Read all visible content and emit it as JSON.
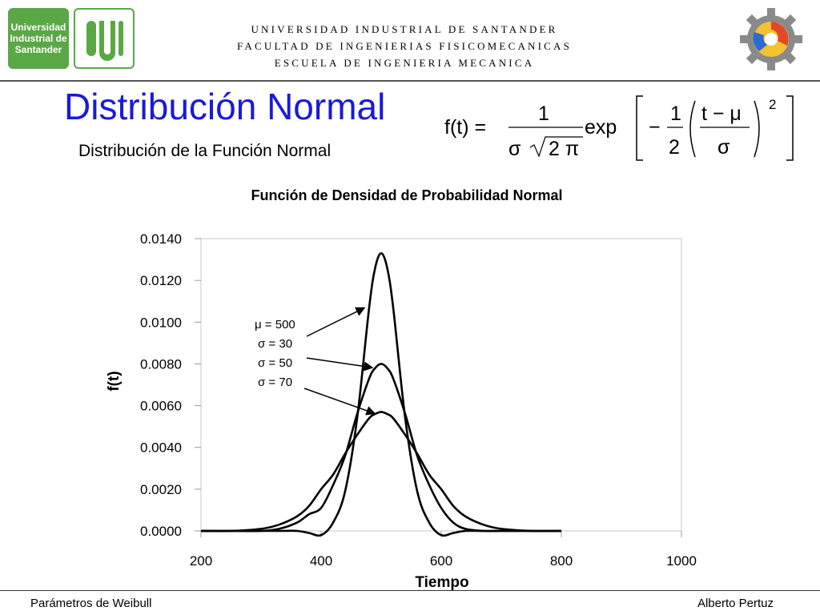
{
  "header": {
    "logo_text": "Universidad Industrial de Santander",
    "lines": [
      "UNIVERSIDAD INDUSTRIAL DE SANTANDER",
      "FACULTAD DE  INGENIERIAS FISICOMECANICAS",
      "ESCUELA DE INGENIERIA MECANICA"
    ]
  },
  "slide": {
    "title": "Distribución Normal",
    "subtitle": "Distribución de la Función Normal"
  },
  "formula": {
    "lhs": "f(t) =",
    "numerator": "1",
    "denominator_sigma": "σ",
    "denominator_root": "2 π",
    "exp": "exp",
    "minus": "−",
    "half_num": "1",
    "half_den": "2",
    "frac_num": "t − μ",
    "frac_den": "σ",
    "power": "2"
  },
  "footer": {
    "left": "Parámetros de Weibull",
    "right": "Alberto Pertuz"
  },
  "colors": {
    "title": "#1a1ad6",
    "logo_green": "#5aa845",
    "curve": "#000000"
  },
  "chart_data": {
    "type": "line",
    "title": "Función de Densidad de Probabilidad Normal",
    "xlabel": "Tiempo",
    "ylabel": "f(t)",
    "xlim": [
      200,
      1000
    ],
    "ylim": [
      0,
      0.014
    ],
    "xticks": [
      "200",
      "400",
      "600",
      "800",
      "1000"
    ],
    "yticks": [
      "0.0000",
      "0.0020",
      "0.0040",
      "0.0060",
      "0.0080",
      "0.0100",
      "0.0120",
      "0.0140"
    ],
    "grid": false,
    "x": [
      200,
      250,
      300,
      330,
      360,
      380,
      400,
      420,
      440,
      460,
      480,
      490,
      500,
      510,
      520,
      540,
      560,
      580,
      600,
      620,
      640,
      670,
      700,
      750,
      800
    ],
    "series": [
      {
        "values": [
          0.0,
          0.0,
          0.0,
          0.0,
          0.0,
          -0.0001,
          -0.0002,
          0.0004,
          0.0019,
          0.0054,
          0.0107,
          0.0126,
          0.0133,
          0.0126,
          0.0107,
          0.0054,
          0.0019,
          0.0004,
          -0.0002,
          -0.0001,
          0.0,
          0.0,
          0.0,
          0.0,
          0.0
        ]
      },
      {
        "values": [
          0.0,
          0.0,
          0.0,
          0.0001,
          0.0004,
          0.0008,
          0.0011,
          0.0022,
          0.0036,
          0.0056,
          0.0073,
          0.0078,
          0.008,
          0.0078,
          0.0073,
          0.0056,
          0.0036,
          0.0022,
          0.0011,
          0.0004,
          0.0001,
          0.0,
          0.0,
          0.0,
          0.0
        ]
      },
      {
        "values": [
          0.0,
          0.0,
          0.0001,
          0.0003,
          0.0007,
          0.0012,
          0.002,
          0.0027,
          0.0037,
          0.0046,
          0.0054,
          0.0056,
          0.0057,
          0.0056,
          0.0054,
          0.0046,
          0.0037,
          0.0027,
          0.002,
          0.0012,
          0.0007,
          0.0003,
          0.0001,
          0.0,
          0.0
        ]
      }
    ],
    "annotations": [
      "μ = 500",
      "σ = 30",
      "σ = 50",
      "σ = 70"
    ]
  }
}
